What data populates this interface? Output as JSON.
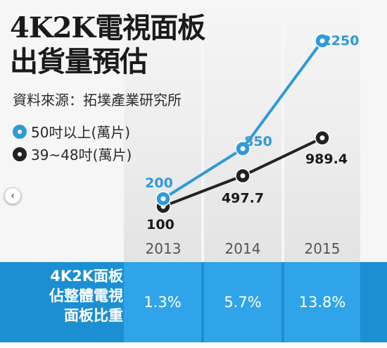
{
  "title_lines": [
    "4K2K電視面板",
    "出貨量預估"
  ],
  "source": "資料來源：拓墣產業研究所",
  "nav": {
    "prev_icon": "chevron-left-icon",
    "prev_glyph": "‹"
  },
  "colors": {
    "blue": "#2f9ad8",
    "black": "#222222"
  },
  "chart_data": {
    "type": "line",
    "title": "4K2K電視面板出貨量預估",
    "categories": [
      "2013",
      "2014",
      "2015"
    ],
    "series": [
      {
        "name": "50吋以上(萬片)",
        "values": [
          200,
          850,
          2250
        ],
        "labels": [
          "200",
          "850",
          "2250"
        ],
        "color": "#2f9ad8"
      },
      {
        "name": "39~48吋(萬片)",
        "values": [
          100,
          497.7,
          989.4
        ],
        "labels": [
          "100",
          "497.7",
          "989.4"
        ],
        "color": "#222222"
      }
    ],
    "ylim": [
      100,
      2250
    ],
    "grid": false,
    "legend": "top-left"
  },
  "share_row": {
    "label_lines": [
      "4K2K面板",
      "佔整體電視",
      "面板比重"
    ],
    "values": [
      "1.3%",
      "5.7%",
      "13.8%"
    ]
  }
}
